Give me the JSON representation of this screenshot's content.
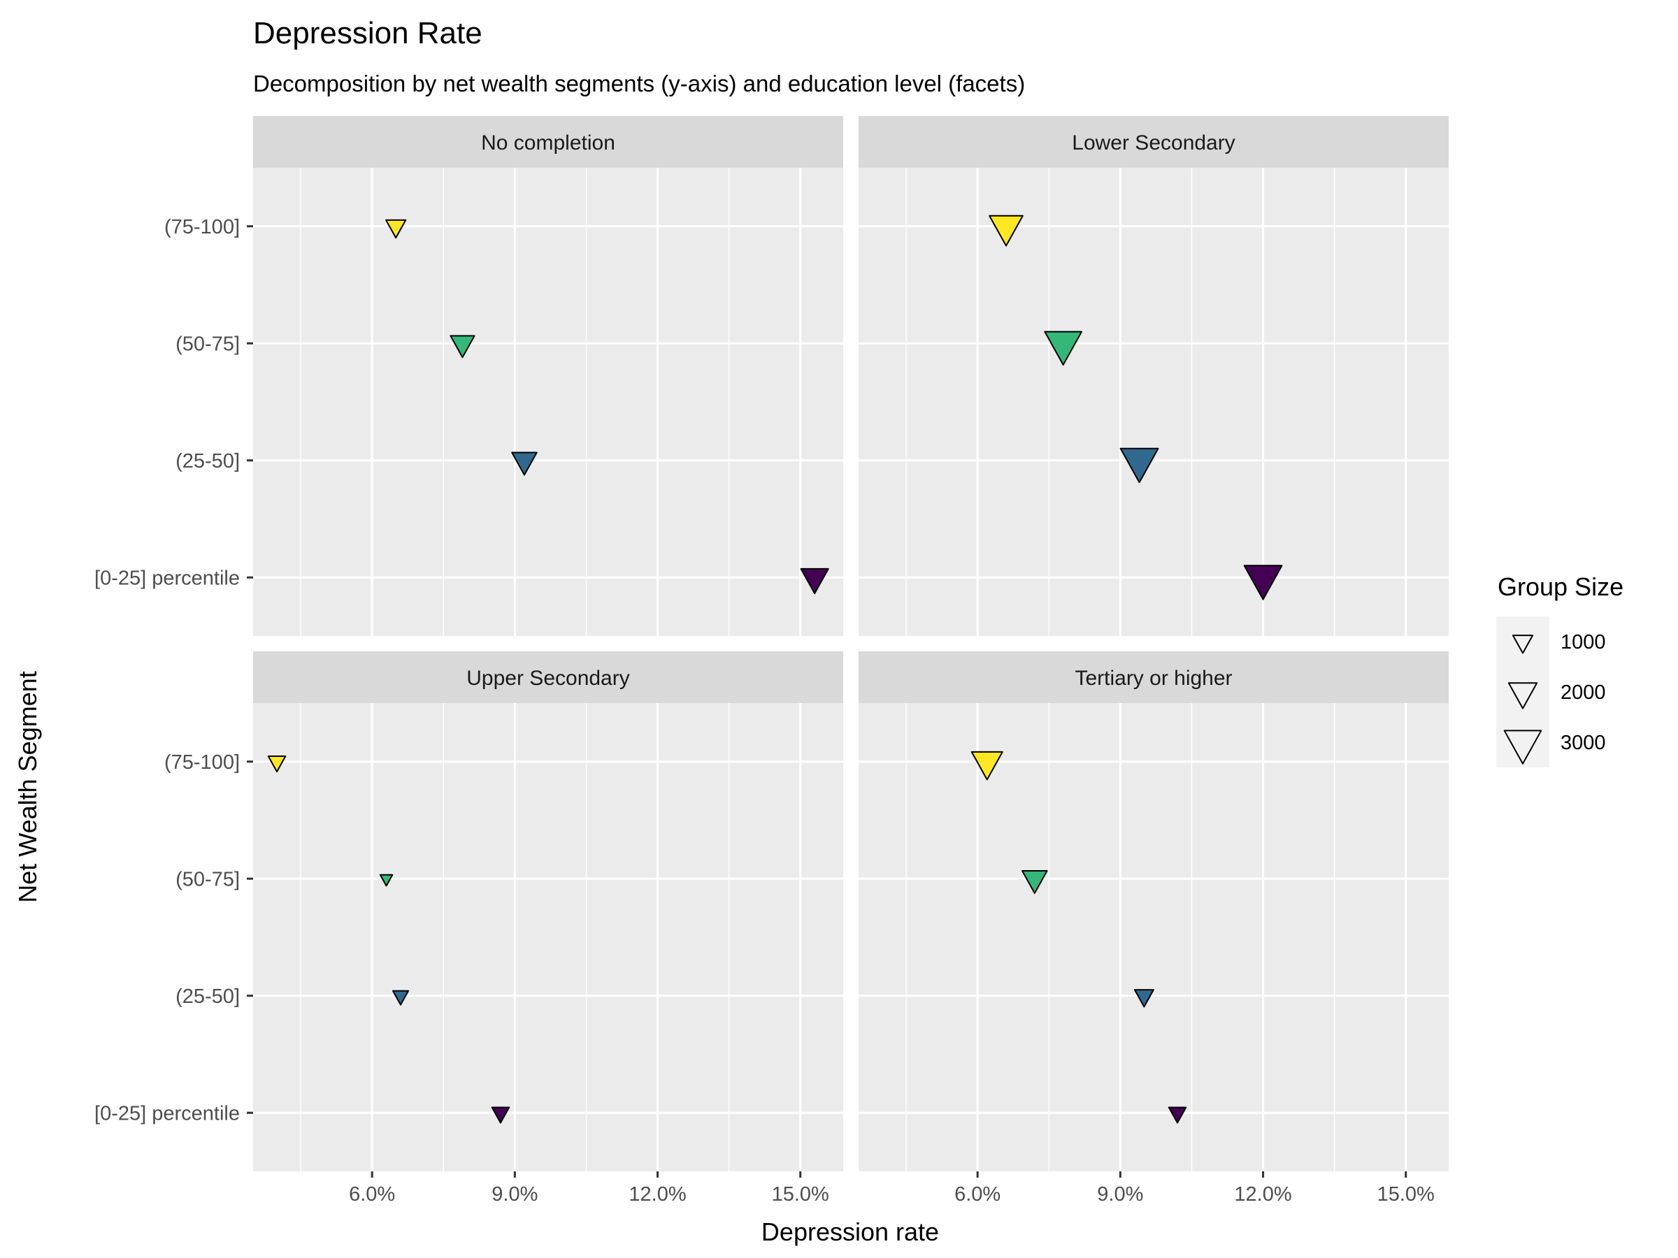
{
  "chart_data": {
    "type": "scatter",
    "title": "Depression Rate",
    "subtitle": "Decomposition by net wealth segments (y-axis) and education level (facets)",
    "xlabel": "Depression rate",
    "ylabel": "Net Wealth Segment",
    "x_ticks": [
      "6.0%",
      "9.0%",
      "12.0%",
      "15.0%"
    ],
    "x_tick_values": [
      6,
      9,
      12,
      15
    ],
    "xlim": [
      3.5,
      15.9
    ],
    "y_categories": [
      "[0-25] percentile",
      "(25-50]",
      "(50-75]",
      "(75-100]"
    ],
    "grid": true,
    "marker": "down-triangle",
    "segment_colors": {
      "[0-25] percentile": "#440154",
      "(25-50]": "#31688e",
      "(50-75]": "#35b779",
      "(75-100]": "#fde725"
    },
    "legend": {
      "title": "Group Size",
      "placement": "right",
      "entries": [
        {
          "label": "1000",
          "size": 1000
        },
        {
          "label": "2000",
          "size": 2000
        },
        {
          "label": "3000",
          "size": 3000
        }
      ]
    },
    "facets": [
      {
        "name": "No completion",
        "points": [
          {
            "segment": "(75-100]",
            "x": 6.5,
            "size": 1000
          },
          {
            "segment": "(50-75]",
            "x": 7.9,
            "size": 1500
          },
          {
            "segment": "(25-50]",
            "x": 9.2,
            "size": 1600
          },
          {
            "segment": "[0-25] percentile",
            "x": 15.3,
            "size": 1900
          }
        ]
      },
      {
        "name": "Lower Secondary",
        "points": [
          {
            "segment": "(75-100]",
            "x": 6.6,
            "size": 2600
          },
          {
            "segment": "(50-75]",
            "x": 7.8,
            "size": 3000
          },
          {
            "segment": "(25-50]",
            "x": 9.4,
            "size": 3100
          },
          {
            "segment": "[0-25] percentile",
            "x": 12.0,
            "size": 3100
          }
        ]
      },
      {
        "name": "Upper Secondary",
        "points": [
          {
            "segment": "(75-100]",
            "x": 4.0,
            "size": 700
          },
          {
            "segment": "(50-75]",
            "x": 6.3,
            "size": 120
          },
          {
            "segment": "(25-50]",
            "x": 6.6,
            "size": 500
          },
          {
            "segment": "[0-25] percentile",
            "x": 8.7,
            "size": 700
          }
        ]
      },
      {
        "name": "Tertiary or higher",
        "points": [
          {
            "segment": "(75-100]",
            "x": 6.2,
            "size": 2300
          },
          {
            "segment": "(50-75]",
            "x": 7.2,
            "size": 1600
          },
          {
            "segment": "(25-50]",
            "x": 9.5,
            "size": 900
          },
          {
            "segment": "[0-25] percentile",
            "x": 10.2,
            "size": 700
          }
        ]
      }
    ]
  }
}
